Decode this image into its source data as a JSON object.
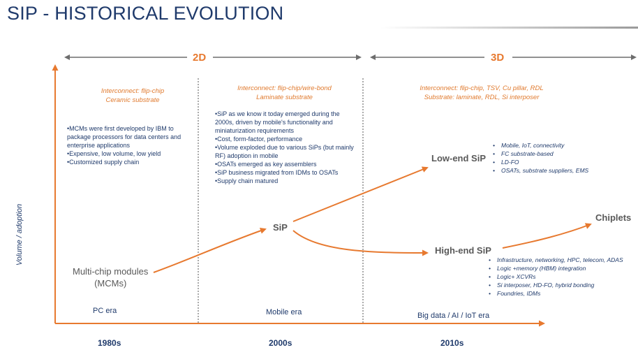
{
  "title": "SIP - HISTORICAL EVOLUTION",
  "colors": {
    "navy": "#1f3a6b",
    "orange": "#e7792f",
    "gray": "#595959"
  },
  "eras_top": {
    "left": "2D",
    "right": "3D"
  },
  "y_axis_label": "Volume / adoption",
  "columns": [
    {
      "interconnect": [
        "Interconnect: flip-chip",
        "Ceramic substrate"
      ],
      "bullets": [
        "•MCMs were first developed by IBM to",
        "package processors for data centers and",
        "enterprise applications",
        "•Expensive, low volume, low yield",
        "•Customized supply chain"
      ],
      "era": "PC era",
      "decade": "1980s"
    },
    {
      "interconnect": [
        "Interconnect: flip-chip/wire-bond",
        "Laminate substrate"
      ],
      "bullets": [
        "•SiP as we know it today emerged during the",
        "2000s, driven by mobile's functionality and",
        "miniaturization requirements",
        "•Cost, form-factor, performance",
        "•Volume exploded due to various SiPs (but mainly",
        "RF) adoption in mobile",
        "•OSATs emerged as key assemblers",
        "•SiP business migrated from IDMs to OSATs",
        "•Supply chain matured"
      ],
      "era": "Mobile era",
      "decade": "2000s"
    },
    {
      "interconnect": [
        "Interconnect: flip-chip, TSV, Cu pillar, RDL",
        "Substrate: laminate, RDL, Si interposer"
      ],
      "era": "Big data / AI / IoT era",
      "decade": "2010s"
    }
  ],
  "nodes": {
    "mcm": [
      "Multi-chip modules",
      "(MCMs)"
    ],
    "sip": "SiP",
    "lowend": "Low-end SiP",
    "highend": "High-end SiP",
    "chiplets": "Chiplets"
  },
  "lowend_bullets": [
    "Mobile, IoT, connectivity",
    "FC substrate-based",
    "LD-FO",
    "OSATs, substrate suppliers, EMS"
  ],
  "highend_bullets": [
    "Infrastructure, networking, HPC, telecom, ADAS",
    "Logic +memory (HBM) integration",
    "Logic+ XCVRs",
    "Si interposer, HD-FO, hybrid bonding",
    "Foundries, IDMs"
  ]
}
